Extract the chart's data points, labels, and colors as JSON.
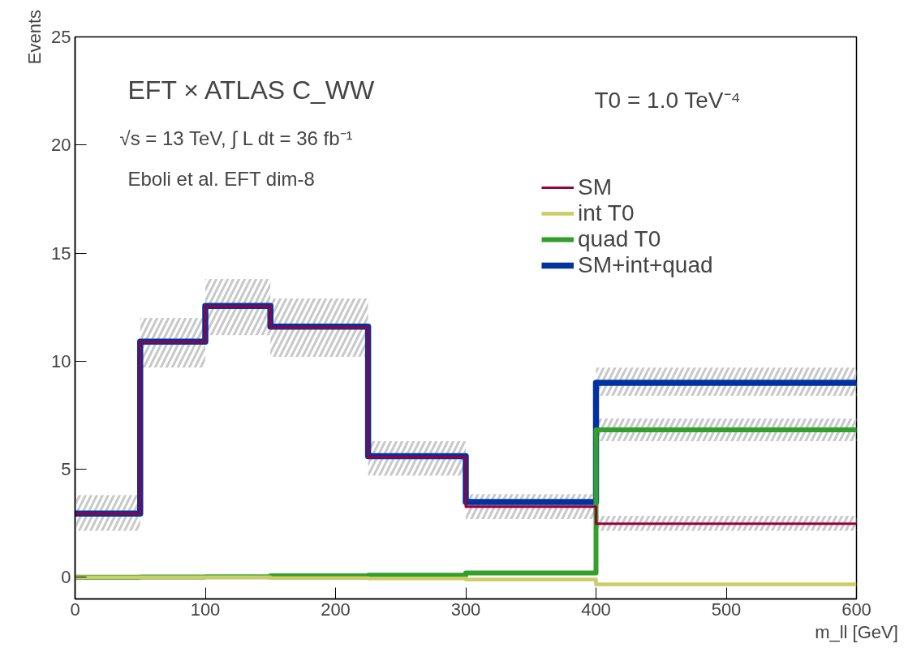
{
  "chart_data": {
    "type": "step",
    "xlabel": "m_ll [GeV]",
    "ylabel": "Events",
    "annotations": [
      "EFT × ATLAS C_WW",
      "√s = 13 TeV, ∫ L dt = 36 fb⁻¹",
      "Eboli et al. EFT dim-8",
      "T0 = 1.0 TeV⁻⁴"
    ],
    "x": [
      0,
      50,
      100,
      150,
      225,
      300,
      400,
      600
    ],
    "series": [
      {
        "name": "SM",
        "color": "#99003a",
        "values": [
          2.95,
          10.88,
          12.53,
          11.56,
          5.57,
          3.27,
          2.48,
          2.48
        ],
        "lower": [
          null,
          null,
          null,
          null,
          null,
          null,
          2.15,
          2.15
        ],
        "upper": [
          null,
          null,
          null,
          null,
          null,
          null,
          2.85,
          2.85
        ]
      },
      {
        "name": "int T0",
        "color": "#cccc66",
        "values": [
          0.0,
          0.0,
          0.0,
          -0.03,
          -0.05,
          -0.1,
          -0.32,
          -0.32
        ]
      },
      {
        "name": "quad T0",
        "color": "#33a02c",
        "values": [
          0.0,
          0.01,
          0.02,
          0.07,
          0.1,
          0.2,
          6.82,
          6.82
        ],
        "lower": [
          null,
          null,
          null,
          null,
          null,
          null,
          6.3,
          6.3
        ],
        "upper": [
          null,
          null,
          null,
          null,
          null,
          null,
          7.35,
          7.35
        ]
      },
      {
        "name": "SM+int+quad",
        "color": "#0033a0",
        "values": [
          2.95,
          10.9,
          12.55,
          11.6,
          5.6,
          3.48,
          9.0,
          9.0
        ],
        "lower": [
          2.15,
          9.7,
          11.2,
          10.2,
          4.7,
          2.7,
          8.4,
          8.4
        ],
        "upper": [
          3.8,
          12.0,
          13.8,
          12.9,
          6.3,
          3.85,
          9.7,
          9.7
        ]
      }
    ],
    "xlim": [
      0,
      600
    ],
    "ylim": [
      -1,
      25
    ],
    "xticks": [
      0,
      100,
      200,
      300,
      400,
      500,
      600
    ],
    "yticks": [
      0,
      5,
      10,
      15,
      20,
      25
    ],
    "grid": false,
    "legend": "top right",
    "line_style": "solid",
    "marker": "none"
  }
}
